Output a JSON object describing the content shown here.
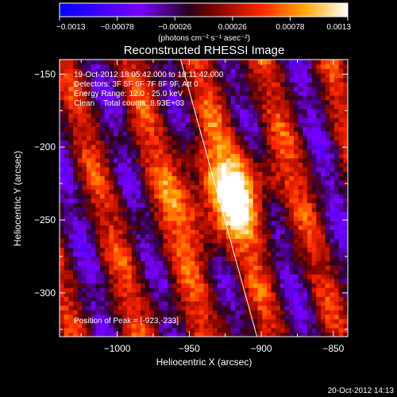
{
  "chart_data": {
    "type": "heatmap",
    "title": "Reconstructed RHESSI Image",
    "xlabel": "Heliocentric X (arcsec)",
    "ylabel": "Heliocentric Y (arcsec)",
    "xlim": [
      -1040,
      -840
    ],
    "ylim": [
      -330,
      -140
    ],
    "x_ticks": [
      -1000,
      -950,
      -900,
      -850
    ],
    "y_ticks": [
      -150,
      -200,
      -250,
      -300
    ],
    "x_tick_labels": [
      "−1000",
      "−950",
      "−900",
      "−850"
    ],
    "y_tick_labels": [
      "−150",
      "−200",
      "−250",
      "−300"
    ],
    "colorbar": {
      "range": [
        -0.0013,
        0.0013
      ],
      "ticks": [
        -0.0013,
        -0.00078,
        -0.00026,
        0.00026,
        0.00078,
        0.0013
      ],
      "tick_labels": [
        "−0.0013",
        "−0.00078",
        "−0.00026",
        "0.00026",
        "0.00078",
        "0.0013"
      ],
      "units": "(photons cm⁻² s⁻¹ asec⁻²)"
    },
    "annotations": [
      "19-Oct-2012 18:05:42.000 to 18:11:42.000",
      "Detectors: 3F 5F 6F 7F 8F 9F, Att 0",
      "Energy Range: 12.0 - 25.0 keV",
      "Clean    Total counts: 8.93E+03"
    ],
    "peak_label": "Position of Peak = [-923,-233]",
    "peak": [
      -923,
      -233
    ],
    "timestamp": "20-Oct-2012 14:13",
    "limb_line": [
      [
        -956,
        -140
      ],
      [
        -903,
        -330
      ]
    ]
  }
}
